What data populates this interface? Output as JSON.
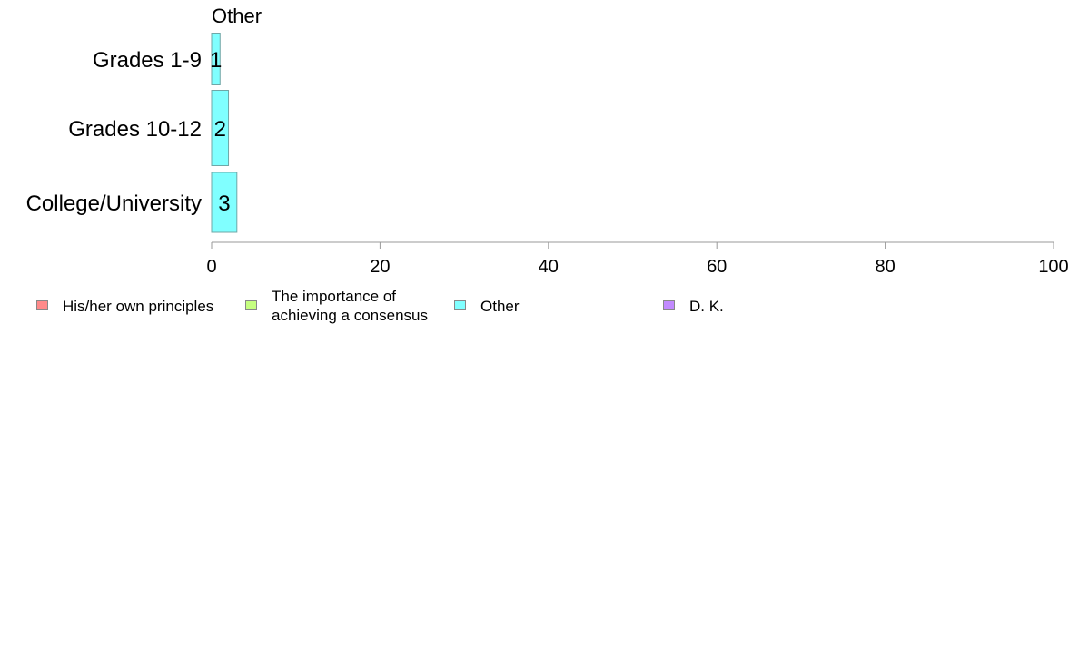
{
  "chart_data": {
    "type": "bar",
    "orientation": "horizontal",
    "title": "Other",
    "categories": [
      "Grades 1-9",
      "Grades 10-12",
      "College/University"
    ],
    "series": [
      {
        "name": "Other",
        "values": [
          1,
          2,
          3
        ],
        "color": "#80ffff"
      }
    ],
    "data_labels": [
      "1",
      "2",
      "3"
    ],
    "xlim": [
      0,
      100
    ],
    "xticks": [
      0,
      20,
      40,
      60,
      80,
      100
    ],
    "xtick_labels": [
      "0",
      "20",
      "40",
      "60",
      "80",
      "100"
    ],
    "grid": false,
    "legend_position": "bottom",
    "legend": [
      {
        "label": "His/her own principles",
        "color": "#ff8a8a"
      },
      {
        "label": "The importance of\nachieving a consensus",
        "color": "#c6ff80"
      },
      {
        "label": "Other",
        "color": "#80ffff"
      },
      {
        "label": "D. K.",
        "color": "#c28aff"
      }
    ]
  }
}
